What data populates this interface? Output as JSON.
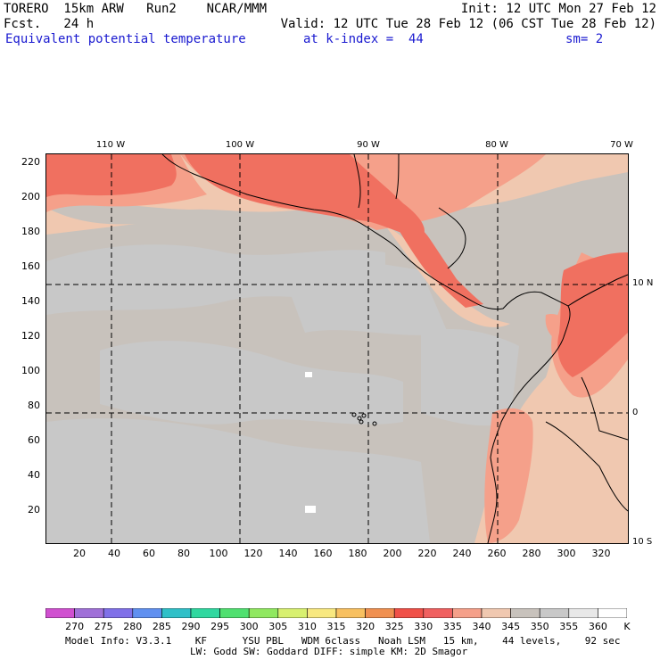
{
  "header": {
    "line1_left": "TORERO  15km ARW   Run2    NCAR/MMM",
    "line1_right": "Init: 12 UTC Mon 27 Feb 12",
    "line2_left": "Fcst.   24 h",
    "line2_right": "Valid: 12 UTC Tue 28 Feb 12 (06 CST Tue 28 Feb 12)",
    "field_name": "Equivalent potential temperature",
    "level": "at k-index =  44",
    "smoothing": "sm= 2"
  },
  "map": {
    "top_lon_labels": [
      "110 W",
      "100 W",
      "90 W",
      "80 W",
      "70 W"
    ],
    "right_lat_labels": [
      "10 N",
      "0",
      "10 S"
    ],
    "y_grid_labels": [
      "220",
      "200",
      "180",
      "160",
      "140",
      "120",
      "100",
      "80",
      "60",
      "40",
      "20"
    ],
    "x_grid_labels": [
      "20",
      "40",
      "60",
      "80",
      "100",
      "120",
      "140",
      "160",
      "180",
      "200",
      "220",
      "240",
      "260",
      "280",
      "300",
      "320"
    ],
    "colors": {
      "background_345_350": "#c8c2bc",
      "gray_350_355": "#c8c8c8",
      "light_340_345": "#f0c8b0",
      "salmon_335_340": "#f5a08a",
      "red_330_335": "#f07060",
      "redder_325_330": "#f05050",
      "coast": "#000000",
      "grid": "#000000"
    }
  },
  "legend": {
    "labels": [
      "270",
      "275",
      "280",
      "285",
      "290",
      "295",
      "300",
      "305",
      "310",
      "315",
      "320",
      "325",
      "330",
      "335",
      "340",
      "345",
      "350",
      "355",
      "360",
      "K"
    ],
    "colors": [
      "#d050d0",
      "#a070d8",
      "#8070e8",
      "#6090f0",
      "#30c0c8",
      "#30d8a0",
      "#50e070",
      "#90e860",
      "#d8f070",
      "#f8e880",
      "#f8c060",
      "#f09050",
      "#f05048",
      "#f06060",
      "#f5a08a",
      "#f0c8b0",
      "#c8c2bc",
      "#c8c8c8",
      "#e8e8e8",
      "#ffffff"
    ]
  },
  "footer": {
    "line1": "Model Info: V3.3.1    KF      YSU PBL   WDM 6class   Noah LSM   15 km,    44 levels,    92 sec",
    "line2": "LW: Godd SW: Goddard DIFF: simple KM: 2D Smagor"
  }
}
